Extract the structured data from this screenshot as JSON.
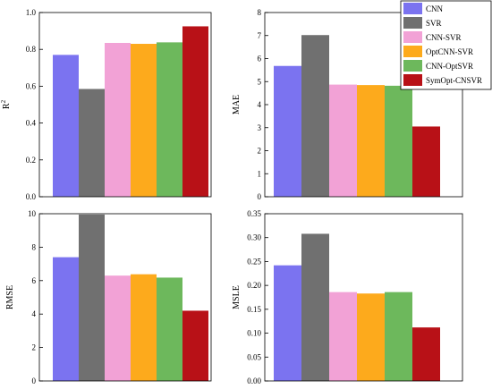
{
  "chart_data": [
    {
      "type": "bar",
      "ylabel": "R",
      "ylabel_superscript": "2",
      "categories": [
        "CNN",
        "SVR",
        "CNN-SVR",
        "OptCNN-SVR",
        "CNN-OptSVR",
        "SymOpt-CNSVR"
      ],
      "values": [
        0.77,
        0.585,
        0.835,
        0.83,
        0.838,
        0.925
      ],
      "ylim": [
        0,
        1.0
      ],
      "yticks": [
        "0.0",
        "0.2",
        "0.4",
        "0.6",
        "0.8",
        "1.0"
      ],
      "grid": false
    },
    {
      "type": "bar",
      "ylabel": "MAE",
      "categories": [
        "CNN",
        "SVR",
        "CNN-SVR",
        "OptCNN-SVR",
        "CNN-OptSVR",
        "SymOpt-CNSVR"
      ],
      "values": [
        5.68,
        7.02,
        4.87,
        4.85,
        4.82,
        3.05
      ],
      "ylim": [
        0,
        8
      ],
      "yticks": [
        "0",
        "1",
        "2",
        "3",
        "4",
        "5",
        "6",
        "7",
        "8"
      ],
      "grid": false
    },
    {
      "type": "bar",
      "ylabel": "RMSE",
      "categories": [
        "CNN",
        "SVR",
        "CNN-SVR",
        "OptCNN-SVR",
        "CNN-OptSVR",
        "SymOpt-CNSVR"
      ],
      "values": [
        7.4,
        9.95,
        6.3,
        6.38,
        6.18,
        4.2
      ],
      "ylim": [
        0,
        10
      ],
      "yticks": [
        "0",
        "2",
        "4",
        "6",
        "8",
        "10"
      ],
      "grid": false
    },
    {
      "type": "bar",
      "ylabel": "MSLE",
      "categories": [
        "CNN",
        "SVR",
        "CNN-SVR",
        "OptCNN-SVR",
        "CNN-OptSVR",
        "SymOpt-CNSVR"
      ],
      "values": [
        0.242,
        0.308,
        0.186,
        0.183,
        0.186,
        0.112
      ],
      "ylim": [
        0,
        0.35
      ],
      "yticks": [
        "0.00",
        "0.05",
        "0.10",
        "0.15",
        "0.20",
        "0.25",
        "0.30",
        "0.35"
      ],
      "grid": false
    }
  ],
  "legend": {
    "placement": "top-right",
    "items": [
      {
        "label": "CNN",
        "color": "#7b73f0"
      },
      {
        "label": "SVR",
        "color": "#707070"
      },
      {
        "label": "CNN-SVR",
        "color": "#f2a2d6"
      },
      {
        "label": "OptCNN-SVR",
        "color": "#fdaa1c"
      },
      {
        "label": "CNN-OptSVR",
        "color": "#6db85c"
      },
      {
        "label": "SymOpt-CNSVR",
        "color": "#b81117"
      }
    ]
  }
}
